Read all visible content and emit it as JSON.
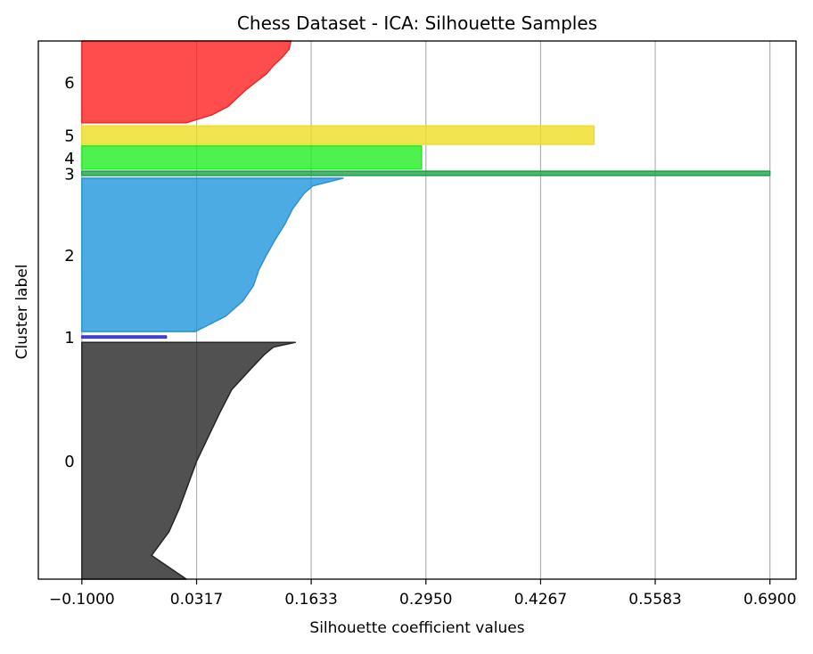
{
  "chart_data": {
    "type": "area",
    "title": "Chess Dataset - ICA: Silhouette Samples",
    "xlabel": "Silhouette coefficient values",
    "ylabel": "Cluster label",
    "xlim": [
      -0.15,
      0.72
    ],
    "x_ticks": [
      -0.1,
      0.0317,
      0.1633,
      0.295,
      0.4267,
      0.5583,
      0.69
    ],
    "x_tick_labels": [
      "−0.1000",
      "0.0317",
      "0.1633",
      "0.2950",
      "0.4267",
      "0.5583",
      "0.6900"
    ],
    "grid": "vertical",
    "ylim": [
      0,
      100
    ],
    "clusters": [
      {
        "label": "0",
        "color": "#262626",
        "y_start": 0,
        "y_end": 44,
        "profile": [
          [
            0,
            0.02
          ],
          [
            0.05,
            0.0
          ],
          [
            0.1,
            -0.02
          ],
          [
            0.2,
            0.0
          ],
          [
            0.3,
            0.012
          ],
          [
            0.4,
            0.022
          ],
          [
            0.5,
            0.032
          ],
          [
            0.6,
            0.045
          ],
          [
            0.7,
            0.058
          ],
          [
            0.8,
            0.072
          ],
          [
            0.9,
            0.097
          ],
          [
            0.95,
            0.11
          ],
          [
            0.98,
            0.12
          ],
          [
            1.0,
            0.145
          ]
        ]
      },
      {
        "label": "1",
        "color": "#3333cc",
        "y_start": 44.8,
        "y_end": 45.2,
        "profile": [
          [
            0,
            -0.003
          ],
          [
            1.0,
            -0.003
          ]
        ]
      },
      {
        "label": "2",
        "color": "#2196dc",
        "y_start": 46,
        "y_end": 74.5,
        "profile": [
          [
            0,
            0.03
          ],
          [
            0.1,
            0.065
          ],
          [
            0.2,
            0.085
          ],
          [
            0.3,
            0.097
          ],
          [
            0.4,
            0.103
          ],
          [
            0.5,
            0.112
          ],
          [
            0.6,
            0.122
          ],
          [
            0.7,
            0.133
          ],
          [
            0.8,
            0.142
          ],
          [
            0.9,
            0.155
          ],
          [
            0.95,
            0.165
          ],
          [
            1.0,
            0.2
          ]
        ]
      },
      {
        "label": "3",
        "color": "#1fa24a",
        "y_start": 75,
        "y_end": 75.8,
        "profile": [
          [
            0,
            0.69
          ],
          [
            1.0,
            0.69
          ]
        ]
      },
      {
        "label": "4",
        "color": "#22ee22",
        "y_start": 76.2,
        "y_end": 80.5,
        "profile": [
          [
            0,
            0.29
          ],
          [
            1.0,
            0.29
          ]
        ]
      },
      {
        "label": "5",
        "color": "#eedd22",
        "y_start": 80.8,
        "y_end": 84.2,
        "profile": [
          [
            0,
            0.488
          ],
          [
            1.0,
            0.488
          ]
        ]
      },
      {
        "label": "6",
        "color": "#ff2020",
        "y_start": 84.8,
        "y_end": 100,
        "profile": [
          [
            0,
            0.02
          ],
          [
            0.1,
            0.05
          ],
          [
            0.2,
            0.068
          ],
          [
            0.3,
            0.078
          ],
          [
            0.4,
            0.088
          ],
          [
            0.5,
            0.1
          ],
          [
            0.6,
            0.112
          ],
          [
            0.7,
            0.12
          ],
          [
            0.8,
            0.13
          ],
          [
            0.9,
            0.138
          ],
          [
            1.0,
            0.14
          ]
        ]
      }
    ]
  }
}
